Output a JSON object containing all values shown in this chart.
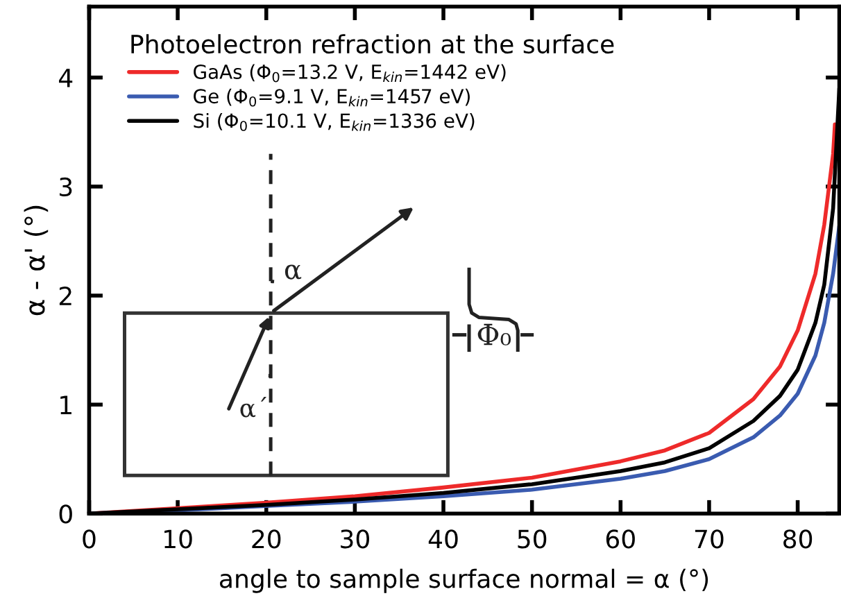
{
  "chart_data": {
    "type": "line",
    "legend_title": "Photoelectron refraction at the surface",
    "xlabel": "angle to sample surface normal = α (°)",
    "ylabel": "α - α' (°)",
    "xlim": [
      0,
      84.7
    ],
    "ylim": [
      0,
      4.65
    ],
    "xticks": [
      0,
      10,
      20,
      30,
      40,
      50,
      60,
      70,
      80
    ],
    "yticks": [
      0,
      1,
      2,
      3,
      4
    ],
    "grid": false,
    "legend": "top left",
    "marker": "none",
    "line_style": "solid",
    "series": [
      {
        "name": "GaAs (Φ$_{0}$=13.2 V, E$_{kin}$=1442 eV)",
        "color": "#ee2a2a",
        "x": [
          0,
          10,
          20,
          30,
          40,
          50,
          60,
          65,
          70,
          75,
          78,
          80,
          82,
          83,
          84,
          84.2
        ],
        "values": [
          0,
          0.05,
          0.1,
          0.16,
          0.24,
          0.33,
          0.48,
          0.58,
          0.74,
          1.05,
          1.35,
          1.68,
          2.2,
          2.65,
          3.3,
          3.57
        ]
      },
      {
        "name": "Ge (Φ$_{0}$=9.1 V, E$_{kin}$=1457 eV)",
        "color": "#3a5bb0",
        "x": [
          0,
          10,
          20,
          30,
          40,
          50,
          60,
          65,
          70,
          75,
          78,
          80,
          82,
          83,
          84,
          84.7
        ],
        "values": [
          0,
          0.03,
          0.07,
          0.11,
          0.16,
          0.22,
          0.32,
          0.39,
          0.5,
          0.7,
          0.9,
          1.1,
          1.45,
          1.75,
          2.2,
          2.64
        ]
      },
      {
        "name": "Si (Φ$_{0}$=10.1 V, E$_{kin}$=1336 eV)",
        "color": "#000000",
        "x": [
          0,
          10,
          20,
          30,
          40,
          50,
          60,
          65,
          70,
          75,
          78,
          80,
          82,
          83,
          84,
          84.7
        ],
        "values": [
          0,
          0.04,
          0.08,
          0.13,
          0.19,
          0.27,
          0.39,
          0.47,
          0.6,
          0.85,
          1.08,
          1.32,
          1.75,
          2.1,
          2.8,
          3.9
        ]
      }
    ],
    "annotations": [
      "α",
      "α´",
      "Φ₀"
    ]
  }
}
